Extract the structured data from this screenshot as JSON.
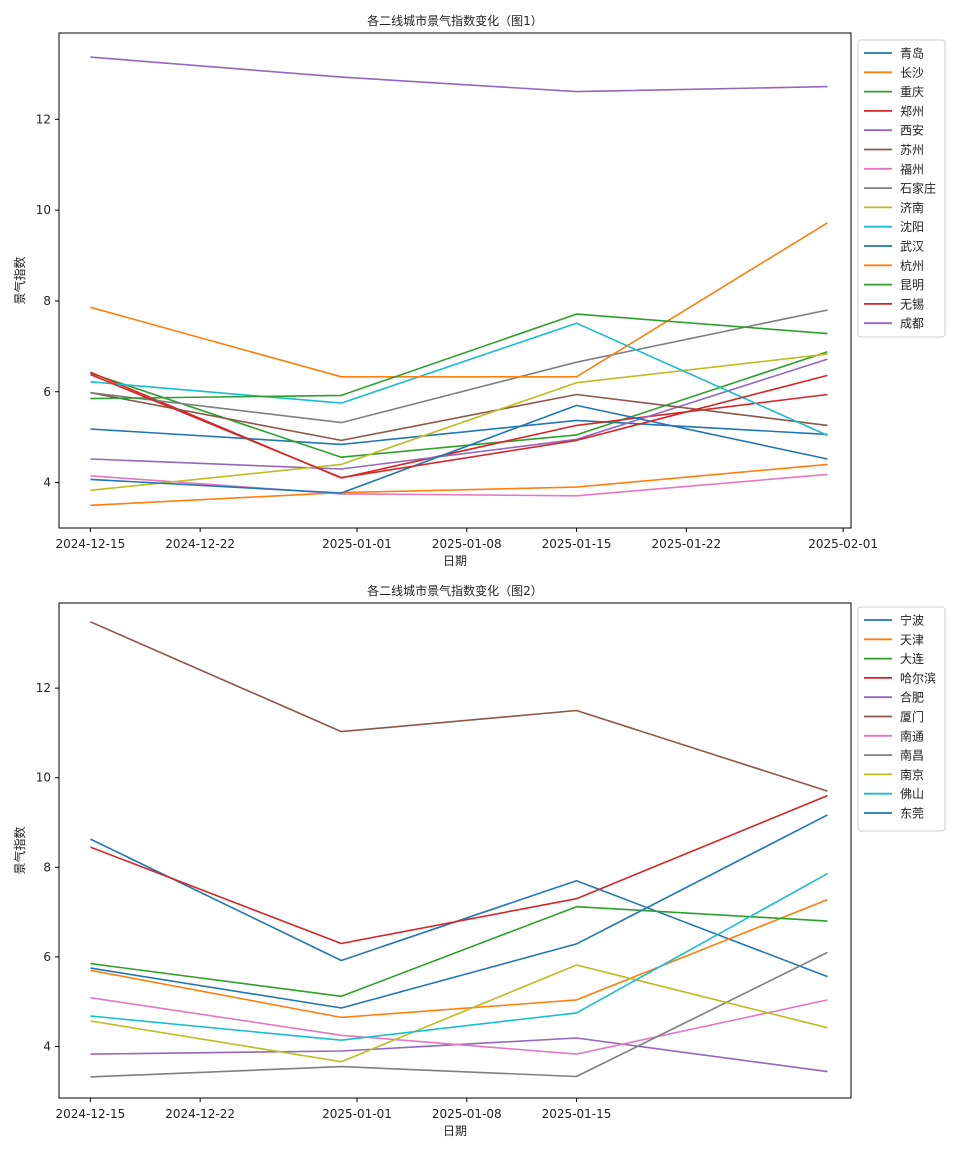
{
  "chart_data": [
    {
      "type": "line",
      "title": "各二线城市景气指数变化（图1）",
      "xlabel": "日期",
      "ylabel": "景气指数",
      "x": [
        "2024-12-15",
        "2024-12-31",
        "2025-01-15",
        "2025-01-31"
      ],
      "xticks": [
        "2024-12-15",
        "2024-12-22",
        "2025-01-01",
        "2025-01-08",
        "2025-01-15",
        "2025-01-22",
        "2025-02-01"
      ],
      "yticks": [
        4,
        6,
        8,
        10,
        12
      ],
      "ylim": [
        3.0,
        13.9
      ],
      "legend_position": "outside-right",
      "series": [
        {
          "name": "青岛",
          "color": "#1f77b4",
          "values": [
            5.18,
            4.84,
            5.37,
            5.06
          ]
        },
        {
          "name": "长沙",
          "color": "#ff7f0e",
          "values": [
            3.5,
            3.78,
            3.9,
            4.4
          ]
        },
        {
          "name": "重庆",
          "color": "#2ca02c",
          "values": [
            6.41,
            4.56,
            5.05,
            6.88
          ]
        },
        {
          "name": "郑州",
          "color": "#d62728",
          "values": [
            6.43,
            4.1,
            5.26,
            5.94
          ]
        },
        {
          "name": "西安",
          "color": "#9467bd",
          "values": [
            4.52,
            4.3,
            4.95,
            6.72
          ]
        },
        {
          "name": "苏州",
          "color": "#8c564b",
          "values": [
            5.98,
            4.93,
            5.94,
            5.26
          ]
        },
        {
          "name": "福州",
          "color": "#e377c2",
          "values": [
            4.15,
            3.75,
            3.71,
            4.18
          ]
        },
        {
          "name": "石家庄",
          "color": "#7f7f7f",
          "values": [
            5.98,
            5.32,
            6.65,
            7.8
          ]
        },
        {
          "name": "济南",
          "color": "#bcbd22",
          "values": [
            3.83,
            4.4,
            6.2,
            6.83
          ]
        },
        {
          "name": "沈阳",
          "color": "#17becf",
          "values": [
            6.22,
            5.75,
            7.51,
            5.04
          ]
        },
        {
          "name": "武汉",
          "color": "#1f77b4",
          "values": [
            4.07,
            3.77,
            5.7,
            4.52
          ]
        },
        {
          "name": "杭州",
          "color": "#ff7f0e",
          "values": [
            7.86,
            6.33,
            6.33,
            9.72
          ]
        },
        {
          "name": "昆明",
          "color": "#2ca02c",
          "values": [
            5.85,
            5.92,
            7.71,
            7.28
          ]
        },
        {
          "name": "无锡",
          "color": "#d62728",
          "values": [
            6.38,
            4.11,
            4.93,
            6.36
          ]
        },
        {
          "name": "成都",
          "color": "#9467bd",
          "values": [
            13.37,
            12.93,
            12.61,
            12.72
          ]
        }
      ]
    },
    {
      "type": "line",
      "title": "各二线城市景气指数变化（图2）",
      "xlabel": "日期",
      "ylabel": "景气指数",
      "x": [
        "2024-12-15",
        "2024-12-31",
        "2025-01-15",
        "2025-01-31"
      ],
      "xticks": [
        "2024-12-15",
        "2024-12-22",
        "2025-01-01",
        "2025-01-08",
        "2025-01-15"
      ],
      "yticks": [
        4,
        6,
        8,
        10,
        12
      ],
      "ylim": [
        2.85,
        13.9
      ],
      "legend_position": "outside-right",
      "series": [
        {
          "name": "宁波",
          "color": "#1f77b4",
          "values": [
            8.63,
            5.92,
            7.7,
            5.56
          ]
        },
        {
          "name": "天津",
          "color": "#ff7f0e",
          "values": [
            5.7,
            4.65,
            5.04,
            7.28
          ]
        },
        {
          "name": "大连",
          "color": "#2ca02c",
          "values": [
            5.85,
            5.12,
            7.12,
            6.8
          ]
        },
        {
          "name": "哈尔滨",
          "color": "#d62728",
          "values": [
            8.45,
            6.3,
            7.3,
            9.6
          ]
        },
        {
          "name": "合肥",
          "color": "#9467bd",
          "values": [
            3.83,
            3.9,
            4.19,
            3.44
          ]
        },
        {
          "name": "厦门",
          "color": "#8c564b",
          "values": [
            13.48,
            11.03,
            11.5,
            9.7
          ]
        },
        {
          "name": "南通",
          "color": "#e377c2",
          "values": [
            5.09,
            4.25,
            3.83,
            5.04
          ]
        },
        {
          "name": "南昌",
          "color": "#7f7f7f",
          "values": [
            3.32,
            3.55,
            3.33,
            6.1
          ]
        },
        {
          "name": "南京",
          "color": "#bcbd22",
          "values": [
            4.57,
            3.66,
            5.82,
            4.42
          ]
        },
        {
          "name": "佛山",
          "color": "#17becf",
          "values": [
            4.68,
            4.14,
            4.75,
            7.86
          ]
        },
        {
          "name": "东莞",
          "color": "#1f77b4",
          "values": [
            5.75,
            4.86,
            6.29,
            9.17
          ]
        }
      ]
    }
  ]
}
